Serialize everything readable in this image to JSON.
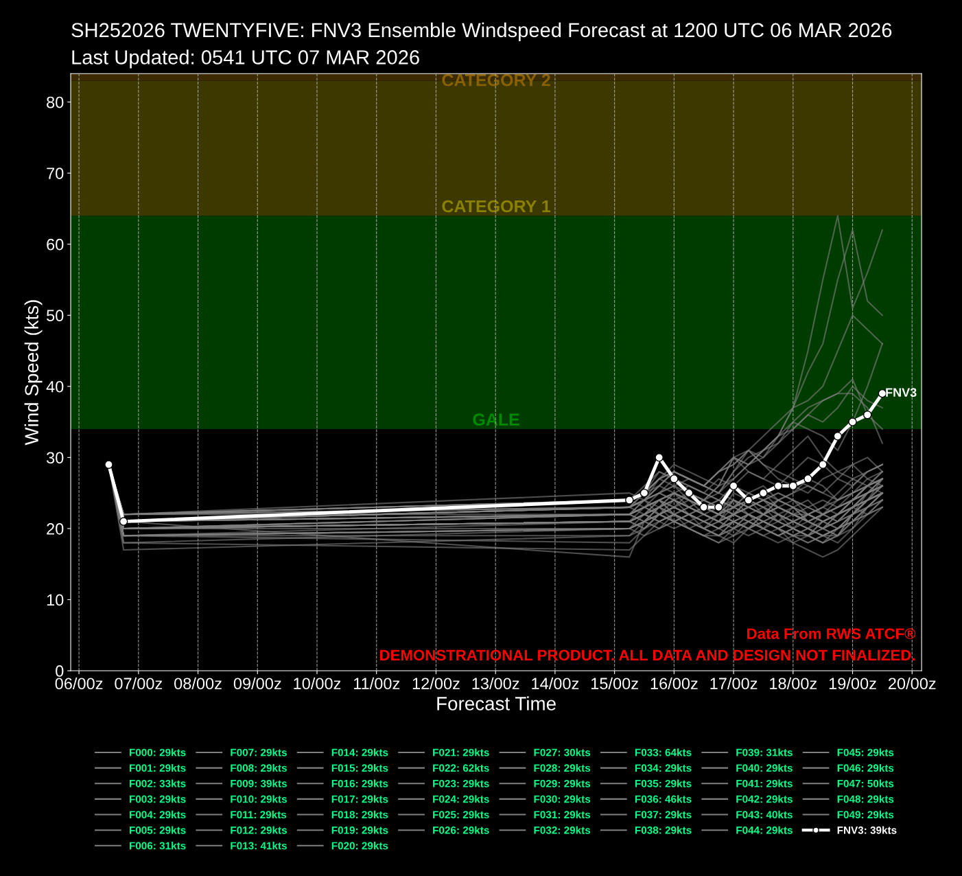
{
  "chart_data": {
    "type": "line",
    "title": "SH252026 TWENTYFIVE: FNV3 Ensemble Windspeed Forecast at 1200 UTC 06 MAR 2026",
    "subtitle": "Last Updated: 0541 UTC 07 MAR 2026",
    "xlabel": "Forecast Time",
    "ylabel": "Wind Speed (kts)",
    "x": [
      "2026-03-06T12:00",
      "2026-03-06T18:00",
      "2026-03-15T06:00",
      "2026-03-15T12:00",
      "2026-03-15T18:00",
      "2026-03-16T00:00",
      "2026-03-16T06:00",
      "2026-03-16T12:00",
      "2026-03-16T18:00",
      "2026-03-17T00:00",
      "2026-03-17T06:00",
      "2026-03-17T12:00",
      "2026-03-17T18:00",
      "2026-03-18T00:00",
      "2026-03-18T06:00",
      "2026-03-18T12:00",
      "2026-03-18T18:00",
      "2026-03-19T00:00",
      "2026-03-19T06:00",
      "2026-03-19T12:00"
    ],
    "xlim": [
      "2026-03-05T20:40",
      "2026-03-20T03:50"
    ],
    "xticks": [
      {
        "value": "2026-03-06T00:00",
        "label": "06/00z"
      },
      {
        "value": "2026-03-07T00:00",
        "label": "07/00z"
      },
      {
        "value": "2026-03-08T00:00",
        "label": "08/00z"
      },
      {
        "value": "2026-03-09T00:00",
        "label": "09/00z"
      },
      {
        "value": "2026-03-10T00:00",
        "label": "10/00z"
      },
      {
        "value": "2026-03-11T00:00",
        "label": "11/00z"
      },
      {
        "value": "2026-03-12T00:00",
        "label": "12/00z"
      },
      {
        "value": "2026-03-13T00:00",
        "label": "13/00z"
      },
      {
        "value": "2026-03-14T00:00",
        "label": "14/00z"
      },
      {
        "value": "2026-03-15T00:00",
        "label": "15/00z"
      },
      {
        "value": "2026-03-16T00:00",
        "label": "16/00z"
      },
      {
        "value": "2026-03-17T00:00",
        "label": "17/00z"
      },
      {
        "value": "2026-03-18T00:00",
        "label": "18/00z"
      },
      {
        "value": "2026-03-19T00:00",
        "label": "19/00z"
      },
      {
        "value": "2026-03-20T00:00",
        "label": "20/00z"
      }
    ],
    "ylim": [
      0,
      84
    ],
    "yticks": [
      0,
      10,
      20,
      30,
      40,
      50,
      60,
      70,
      80
    ],
    "grid": "x",
    "legend": "bottom",
    "bands": [
      {
        "axis": "y",
        "from": 34,
        "to": 64,
        "label": "GALE",
        "color": "#003c00"
      },
      {
        "axis": "y",
        "from": 64,
        "to": 83,
        "label": "CATEGORY 1",
        "color": "#3c3800"
      },
      {
        "axis": "y",
        "from": 83,
        "to": 84,
        "label": "CATEGORY 2",
        "color": "#3c2a00"
      }
    ],
    "annotations": [
      {
        "text": "FNV3",
        "x": "2026-03-19T12:00",
        "y": 39
      },
      "Data From RWS ATCF®",
      "DEMONSTRATIONAL PRODUCT. ALL DATA AND DESIGN NOT FINALIZED."
    ],
    "series": [
      {
        "name": "F000: 29kts",
        "color": "#808080",
        "values": [
          29,
          21,
          23,
          24,
          26,
          25,
          24,
          23,
          22,
          24,
          23,
          22,
          23,
          22,
          21,
          20,
          22,
          23,
          24,
          25
        ]
      },
      {
        "name": "F001: 29kts",
        "color": "#808080",
        "values": [
          29,
          20,
          22,
          21,
          22,
          24,
          25,
          24,
          23,
          22,
          24,
          25,
          23,
          24,
          22,
          23,
          25,
          27,
          28,
          29
        ]
      },
      {
        "name": "F002: 33kts",
        "color": "#808080",
        "values": [
          29,
          22,
          24,
          26,
          28,
          27,
          25,
          24,
          26,
          30,
          28,
          27,
          29,
          31,
          33,
          30,
          28,
          27,
          26,
          27
        ]
      },
      {
        "name": "F003: 29kts",
        "color": "#808080",
        "values": [
          29,
          19,
          19,
          20,
          22,
          21,
          20,
          19,
          19,
          21,
          22,
          20,
          19,
          20,
          19,
          18,
          19,
          21,
          22,
          23
        ]
      },
      {
        "name": "F004: 29kts",
        "color": "#808080",
        "values": [
          29,
          18,
          20,
          22,
          24,
          23,
          22,
          21,
          20,
          22,
          21,
          22,
          24,
          25,
          27,
          26,
          24,
          25,
          26,
          28
        ]
      },
      {
        "name": "F005: 29kts",
        "color": "#808080",
        "values": [
          29,
          21,
          24,
          25,
          28,
          27,
          26,
          25,
          27,
          26,
          25,
          24,
          23,
          22,
          22,
          21,
          22,
          24,
          26,
          25
        ]
      },
      {
        "name": "F006: 31kts",
        "color": "#808080",
        "values": [
          29,
          21,
          23,
          24,
          26,
          28,
          27,
          26,
          25,
          28,
          31,
          29,
          27,
          26,
          25,
          27,
          28,
          29,
          27,
          26
        ]
      },
      {
        "name": "F007: 29kts",
        "color": "#808080",
        "values": [
          29,
          20,
          21,
          22,
          21,
          20,
          21,
          22,
          21,
          20,
          19,
          20,
          21,
          20,
          19,
          21,
          22,
          23,
          24,
          25
        ]
      },
      {
        "name": "F008: 29kts",
        "color": "#808080",
        "values": [
          29,
          19,
          20,
          19,
          20,
          21,
          22,
          20,
          19,
          20,
          21,
          20,
          19,
          20,
          21,
          20,
          19,
          22,
          25,
          27
        ]
      },
      {
        "name": "F009: 39kts",
        "color": "#808080",
        "values": [
          29,
          22,
          25,
          24,
          27,
          28,
          27,
          26,
          25,
          27,
          29,
          30,
          32,
          35,
          37,
          38,
          39,
          39,
          37,
          32
        ]
      },
      {
        "name": "F010: 29kts",
        "color": "#808080",
        "values": [
          29,
          20,
          22,
          23,
          22,
          21,
          22,
          23,
          24,
          23,
          22,
          21,
          20,
          19,
          18,
          19,
          20,
          22,
          23,
          24
        ]
      },
      {
        "name": "F011: 29kts",
        "color": "#808080",
        "values": [
          29,
          21,
          22,
          24,
          25,
          24,
          23,
          22,
          21,
          22,
          23,
          24,
          22,
          21,
          20,
          19,
          19,
          20,
          23,
          25
        ]
      },
      {
        "name": "F012: 29kts",
        "color": "#808080",
        "values": [
          29,
          17,
          19,
          21,
          20,
          22,
          21,
          20,
          19,
          18,
          20,
          21,
          22,
          21,
          20,
          21,
          22,
          23,
          22,
          24
        ]
      },
      {
        "name": "F013: 41kts",
        "color": "#808080",
        "values": [
          29,
          21,
          23,
          25,
          27,
          29,
          28,
          27,
          26,
          30,
          29,
          31,
          33,
          34,
          36,
          38,
          39,
          41,
          36,
          34
        ]
      },
      {
        "name": "F014: 29kts",
        "color": "#808080",
        "values": [
          29,
          20,
          21,
          20,
          22,
          23,
          24,
          23,
          22,
          21,
          20,
          22,
          23,
          22,
          21,
          22,
          21,
          23,
          24,
          26
        ]
      },
      {
        "name": "F015: 29kts",
        "color": "#808080",
        "values": [
          29,
          19,
          21,
          22,
          23,
          21,
          20,
          19,
          18,
          19,
          20,
          21,
          20,
          19,
          19,
          18,
          19,
          22,
          24,
          27
        ]
      },
      {
        "name": "F016: 29kts",
        "color": "#808080",
        "values": [
          29,
          22,
          24,
          23,
          25,
          26,
          24,
          23,
          22,
          25,
          24,
          23,
          24,
          25,
          26,
          25,
          24,
          26,
          28,
          29
        ]
      },
      {
        "name": "F017: 29kts",
        "color": "#808080",
        "values": [
          29,
          20,
          20,
          21,
          23,
          24,
          22,
          21,
          20,
          22,
          23,
          22,
          21,
          23,
          24,
          22,
          21,
          23,
          25,
          26
        ]
      },
      {
        "name": "F018: 29kts",
        "color": "#808080",
        "values": [
          29,
          21,
          23,
          24,
          22,
          23,
          25,
          24,
          23,
          22,
          24,
          23,
          22,
          20,
          19,
          20,
          21,
          23,
          25,
          26
        ]
      },
      {
        "name": "F019: 29kts",
        "color": "#808080",
        "values": [
          29,
          18,
          17,
          19,
          21,
          22,
          20,
          19,
          18,
          20,
          22,
          21,
          20,
          18,
          17,
          16,
          17,
          19,
          21,
          23
        ]
      },
      {
        "name": "F020: 29kts",
        "color": "#808080",
        "values": [
          29,
          20,
          22,
          23,
          24,
          25,
          23,
          22,
          21,
          23,
          25,
          24,
          23,
          22,
          21,
          20,
          21,
          22,
          24,
          25
        ]
      },
      {
        "name": "F021: 29kts",
        "color": "#808080",
        "values": [
          29,
          21,
          16,
          21,
          23,
          25,
          24,
          22,
          21,
          24,
          23,
          22,
          21,
          22,
          23,
          24,
          23,
          24,
          26,
          28
        ]
      },
      {
        "name": "F022: 62kts",
        "color": "#808080",
        "values": [
          29,
          22,
          24,
          25,
          27,
          28,
          27,
          26,
          28,
          29,
          31,
          30,
          33,
          37,
          42,
          46,
          55,
          62,
          52,
          50
        ]
      },
      {
        "name": "F023: 29kts",
        "color": "#808080",
        "values": [
          29,
          20,
          21,
          22,
          23,
          22,
          21,
          20,
          21,
          22,
          21,
          20,
          19,
          20,
          22,
          21,
          20,
          22,
          24,
          25
        ]
      },
      {
        "name": "F024: 29kts",
        "color": "#808080",
        "values": [
          29,
          19,
          20,
          21,
          22,
          23,
          22,
          21,
          20,
          19,
          21,
          20,
          19,
          18,
          19,
          20,
          22,
          23,
          24,
          26
        ]
      },
      {
        "name": "F025: 29kts",
        "color": "#808080",
        "values": [
          29,
          21,
          22,
          23,
          24,
          22,
          21,
          20,
          22,
          23,
          24,
          22,
          21,
          20,
          19,
          21,
          22,
          24,
          25,
          27
        ]
      },
      {
        "name": "F026: 29kts",
        "color": "#808080",
        "values": [
          29,
          20,
          21,
          22,
          21,
          22,
          23,
          22,
          21,
          22,
          23,
          24,
          23,
          22,
          21,
          20,
          21,
          22,
          23,
          24
        ]
      },
      {
        "name": "F027: 30kts",
        "color": "#808080",
        "values": [
          29,
          22,
          23,
          24,
          25,
          27,
          26,
          25,
          24,
          26,
          28,
          27,
          26,
          28,
          30,
          29,
          27,
          26,
          28,
          29
        ]
      },
      {
        "name": "F028: 29kts",
        "color": "#808080",
        "values": [
          29,
          19,
          18,
          20,
          21,
          22,
          21,
          20,
          19,
          21,
          22,
          21,
          20,
          19,
          18,
          19,
          20,
          21,
          23,
          25
        ]
      },
      {
        "name": "F029: 29kts",
        "color": "#808080",
        "values": [
          29,
          21,
          23,
          22,
          24,
          25,
          24,
          23,
          22,
          24,
          23,
          22,
          24,
          23,
          22,
          21,
          22,
          24,
          26,
          27
        ]
      },
      {
        "name": "F030: 29kts",
        "color": "#808080",
        "values": [
          29,
          20,
          21,
          23,
          22,
          21,
          20,
          21,
          22,
          21,
          20,
          19,
          20,
          21,
          22,
          23,
          22,
          23,
          25,
          26
        ]
      },
      {
        "name": "F031: 29kts",
        "color": "#808080",
        "values": [
          29,
          22,
          23,
          24,
          23,
          25,
          26,
          25,
          24,
          23,
          25,
          26,
          24,
          23,
          22,
          21,
          22,
          24,
          25,
          27
        ]
      },
      {
        "name": "F032: 29kts",
        "color": "#808080",
        "values": [
          29,
          20,
          22,
          21,
          23,
          24,
          23,
          22,
          23,
          24,
          22,
          21,
          20,
          19,
          20,
          22,
          23,
          24,
          25,
          26
        ]
      },
      {
        "name": "F033: 64kts",
        "color": "#808080",
        "values": [
          29,
          22,
          23,
          24,
          26,
          28,
          27,
          26,
          25,
          28,
          30,
          31,
          33,
          37,
          45,
          55,
          64,
          51,
          56,
          62
        ]
      },
      {
        "name": "F034: 29kts",
        "color": "#808080",
        "values": [
          29,
          19,
          20,
          21,
          22,
          21,
          20,
          19,
          20,
          21,
          20,
          19,
          18,
          19,
          20,
          19,
          18,
          20,
          22,
          24
        ]
      },
      {
        "name": "F035: 29kts",
        "color": "#808080",
        "values": [
          29,
          21,
          22,
          24,
          25,
          24,
          23,
          24,
          25,
          24,
          23,
          24,
          25,
          24,
          23,
          22,
          23,
          25,
          27,
          28
        ]
      },
      {
        "name": "F036: 46kts",
        "color": "#808080",
        "values": [
          29,
          21,
          23,
          25,
          27,
          26,
          25,
          24,
          26,
          27,
          29,
          31,
          33,
          35,
          34,
          33,
          31,
          35,
          40,
          46
        ]
      },
      {
        "name": "F037: 29kts",
        "color": "#808080",
        "values": [
          29,
          20,
          21,
          22,
          23,
          22,
          21,
          20,
          19,
          20,
          22,
          23,
          21,
          20,
          19,
          18,
          20,
          21,
          23,
          25
        ]
      },
      {
        "name": "F038: 29kts",
        "color": "#808080",
        "values": [
          29,
          22,
          22,
          23,
          24,
          25,
          24,
          23,
          22,
          23,
          24,
          25,
          24,
          23,
          21,
          22,
          24,
          25,
          26,
          27
        ]
      },
      {
        "name": "F039: 31kts",
        "color": "#808080",
        "values": [
          29,
          21,
          23,
          24,
          25,
          26,
          27,
          26,
          28,
          30,
          31,
          29,
          28,
          27,
          26,
          25,
          27,
          29,
          30,
          28
        ]
      },
      {
        "name": "F040: 29kts",
        "color": "#808080",
        "values": [
          29,
          20,
          21,
          22,
          21,
          22,
          21,
          20,
          21,
          22,
          21,
          20,
          22,
          21,
          20,
          19,
          20,
          21,
          22,
          23
        ]
      },
      {
        "name": "F041: 29kts",
        "color": "#808080",
        "values": [
          29,
          19,
          20,
          21,
          22,
          23,
          22,
          21,
          20,
          21,
          20,
          21,
          22,
          23,
          21,
          20,
          19,
          21,
          23,
          25
        ]
      },
      {
        "name": "F042: 29kts",
        "color": "#808080",
        "values": [
          29,
          21,
          22,
          23,
          24,
          23,
          22,
          23,
          24,
          23,
          22,
          21,
          20,
          21,
          22,
          21,
          20,
          22,
          24,
          25
        ]
      },
      {
        "name": "F043: 40kts",
        "color": "#808080",
        "values": [
          29,
          22,
          24,
          25,
          26,
          28,
          27,
          26,
          28,
          30,
          29,
          31,
          32,
          34,
          36,
          35,
          37,
          40,
          38,
          37
        ]
      },
      {
        "name": "F044: 29kts",
        "color": "#808080",
        "values": [
          29,
          20,
          21,
          20,
          22,
          23,
          22,
          21,
          22,
          21,
          20,
          22,
          23,
          22,
          21,
          22,
          23,
          24,
          25,
          26
        ]
      },
      {
        "name": "F045: 29kts",
        "color": "#808080",
        "values": [
          29,
          21,
          22,
          23,
          24,
          22,
          23,
          24,
          23,
          22,
          23,
          24,
          25,
          24,
          23,
          22,
          23,
          24,
          26,
          27
        ]
      },
      {
        "name": "F046: 29kts",
        "color": "#808080",
        "values": [
          29,
          20,
          21,
          22,
          23,
          24,
          23,
          22,
          21,
          20,
          21,
          22,
          23,
          22,
          21,
          22,
          23,
          24,
          25,
          26
        ]
      },
      {
        "name": "F047: 50kts",
        "color": "#808080",
        "values": [
          29,
          22,
          24,
          25,
          27,
          28,
          27,
          26,
          28,
          29,
          31,
          33,
          35,
          37,
          38,
          40,
          45,
          50,
          48,
          46
        ]
      },
      {
        "name": "F048: 29kts",
        "color": "#808080",
        "values": [
          29,
          19,
          20,
          21,
          20,
          21,
          22,
          21,
          20,
          21,
          22,
          21,
          20,
          21,
          20,
          19,
          20,
          22,
          24,
          25
        ]
      },
      {
        "name": "F049: 29kts",
        "color": "#808080",
        "values": [
          29,
          21,
          22,
          23,
          24,
          25,
          24,
          23,
          22,
          23,
          24,
          23,
          22,
          21,
          22,
          23,
          24,
          25,
          26,
          27
        ]
      },
      {
        "name": "FNV3: 39kts",
        "color": "#ffffff",
        "marker": "circle",
        "values": [
          29,
          21,
          24,
          25,
          30,
          27,
          25,
          23,
          23,
          26,
          24,
          25,
          26,
          26,
          27,
          29,
          33,
          35,
          36,
          39
        ]
      }
    ]
  }
}
